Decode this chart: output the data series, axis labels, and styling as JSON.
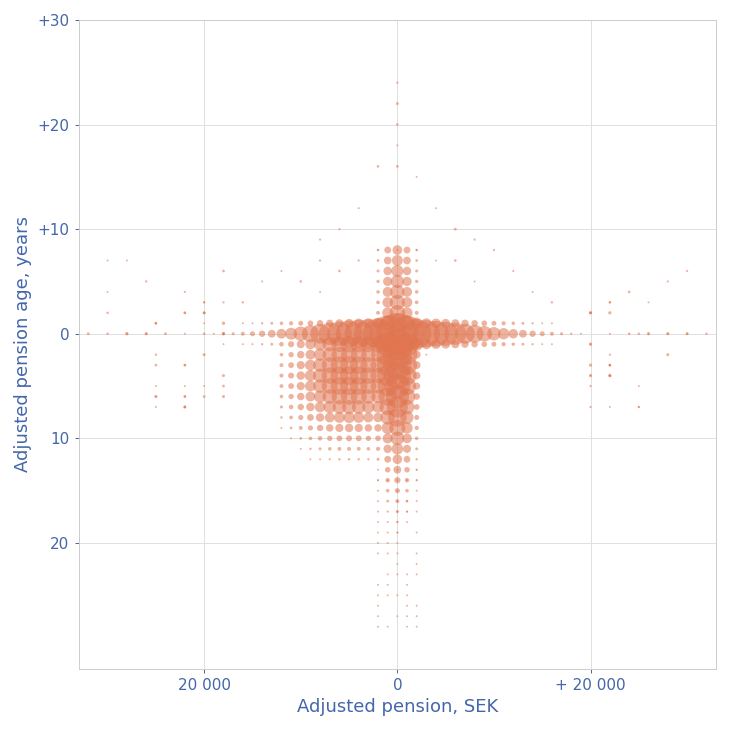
{
  "xlabel": "Adjusted pension, SEK",
  "ylabel": "Adjusted pension age, years",
  "dot_color": "#E07550",
  "dot_alpha": 0.55,
  "background_color": "#ffffff",
  "grid_color": "#e0e0e0",
  "tick_label_color": "#4466aa",
  "axis_label_color": "#4466aa",
  "xlim": [
    -33000,
    33000
  ],
  "ylim": [
    32,
    -25
  ],
  "yticks": [
    20,
    10,
    0,
    -10,
    -20,
    -30
  ],
  "ytick_labels": [
    "20",
    "10",
    "0",
    "+10",
    "+20",
    "+30"
  ],
  "xticks": [
    -20000,
    0,
    20000
  ],
  "xtick_labels": [
    "20 000",
    "0",
    "+ 20 000"
  ],
  "figsize": [
    7.3,
    7.3
  ],
  "dpi": 100
}
